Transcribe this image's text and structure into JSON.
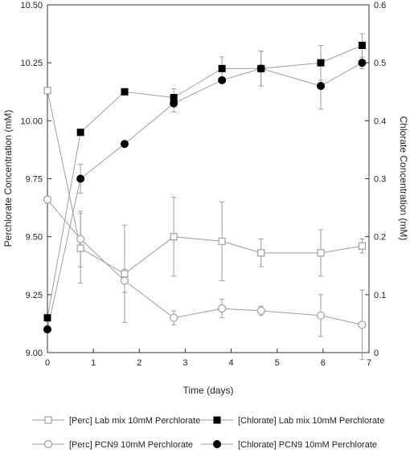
{
  "chart_data": {
    "type": "line",
    "title": "",
    "xlabel": "Time (days)",
    "ylabel_left": "Perchlorate Concentration (mM)",
    "ylabel_right": "Chlorate Concentration (mM)",
    "xlim": [
      0,
      7
    ],
    "ylim_left": [
      9.0,
      10.5
    ],
    "ylim_right": [
      0,
      0.6
    ],
    "x_ticks": [
      "0",
      "1",
      "2",
      "3",
      "4",
      "5",
      "6",
      "7"
    ],
    "y_left_ticks": [
      "9.00",
      "9.25",
      "9.50",
      "9.75",
      "10.00",
      "10.25",
      "10.50"
    ],
    "y_right_ticks": [
      "0",
      "0.1",
      "0.2",
      "0.3",
      "0.4",
      "0.5",
      "0.6"
    ],
    "grid": false,
    "legend_position": "bottom",
    "series": [
      {
        "name": "[Perc] Lab mix 10mM Perchlorate",
        "axis": "left",
        "marker": "open-square",
        "color": "#9e9e9e",
        "x": [
          0,
          0.72,
          1.68,
          2.75,
          3.8,
          4.65,
          5.95,
          6.85
        ],
        "y": [
          10.13,
          9.45,
          9.34,
          9.5,
          9.48,
          9.43,
          9.43,
          9.46
        ],
        "err": [
          0,
          0.15,
          0.21,
          0.17,
          0.17,
          0.06,
          0.1,
          0.03
        ]
      },
      {
        "name": "[Perc] PCN9 10mM Perchlorate",
        "axis": "left",
        "marker": "open-circle",
        "color": "#9e9e9e",
        "x": [
          0,
          0.72,
          1.68,
          2.75,
          3.8,
          4.65,
          5.95,
          6.85
        ],
        "y": [
          9.66,
          9.49,
          9.31,
          9.15,
          9.19,
          9.18,
          9.16,
          9.12
        ],
        "err": [
          0,
          0.12,
          0.05,
          0.03,
          0.04,
          0.02,
          0.09,
          0.15
        ]
      },
      {
        "name": "[Chlorate] Lab mix 10mM Perchlorate",
        "axis": "right",
        "marker": "filled-square",
        "color": "#000000",
        "line_color": "#9e9e9e",
        "x": [
          0,
          0.72,
          1.68,
          2.75,
          3.8,
          4.65,
          5.95,
          6.85
        ],
        "y": [
          0.06,
          0.38,
          0.45,
          0.44,
          0.49,
          0.49,
          0.5,
          0.53
        ],
        "err": [
          0,
          0,
          0,
          0.015,
          0.02,
          0.03,
          0.03,
          0.02
        ]
      },
      {
        "name": "[Chlorate] PCN9 10mM Perchlorate",
        "axis": "right",
        "marker": "filled-circle",
        "color": "#000000",
        "line_color": "#9e9e9e",
        "x": [
          0,
          0.72,
          1.68,
          2.75,
          3.8,
          4.65,
          5.95,
          6.85
        ],
        "y": [
          0.04,
          0.3,
          0.36,
          0.43,
          0.47,
          0.49,
          0.46,
          0.5
        ],
        "err": [
          0,
          0.025,
          0,
          0.015,
          0,
          0.03,
          0.04,
          0.01
        ]
      }
    ]
  }
}
